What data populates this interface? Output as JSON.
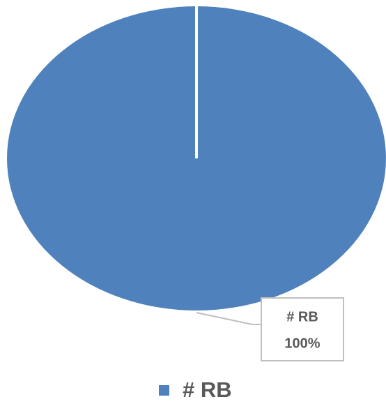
{
  "chart_data": {
    "type": "pie",
    "categories": [
      "# RB"
    ],
    "values": [
      100
    ],
    "value_labels": [
      "100%"
    ],
    "colors": [
      "#4f81bd"
    ],
    "legend": "bottom"
  }
}
